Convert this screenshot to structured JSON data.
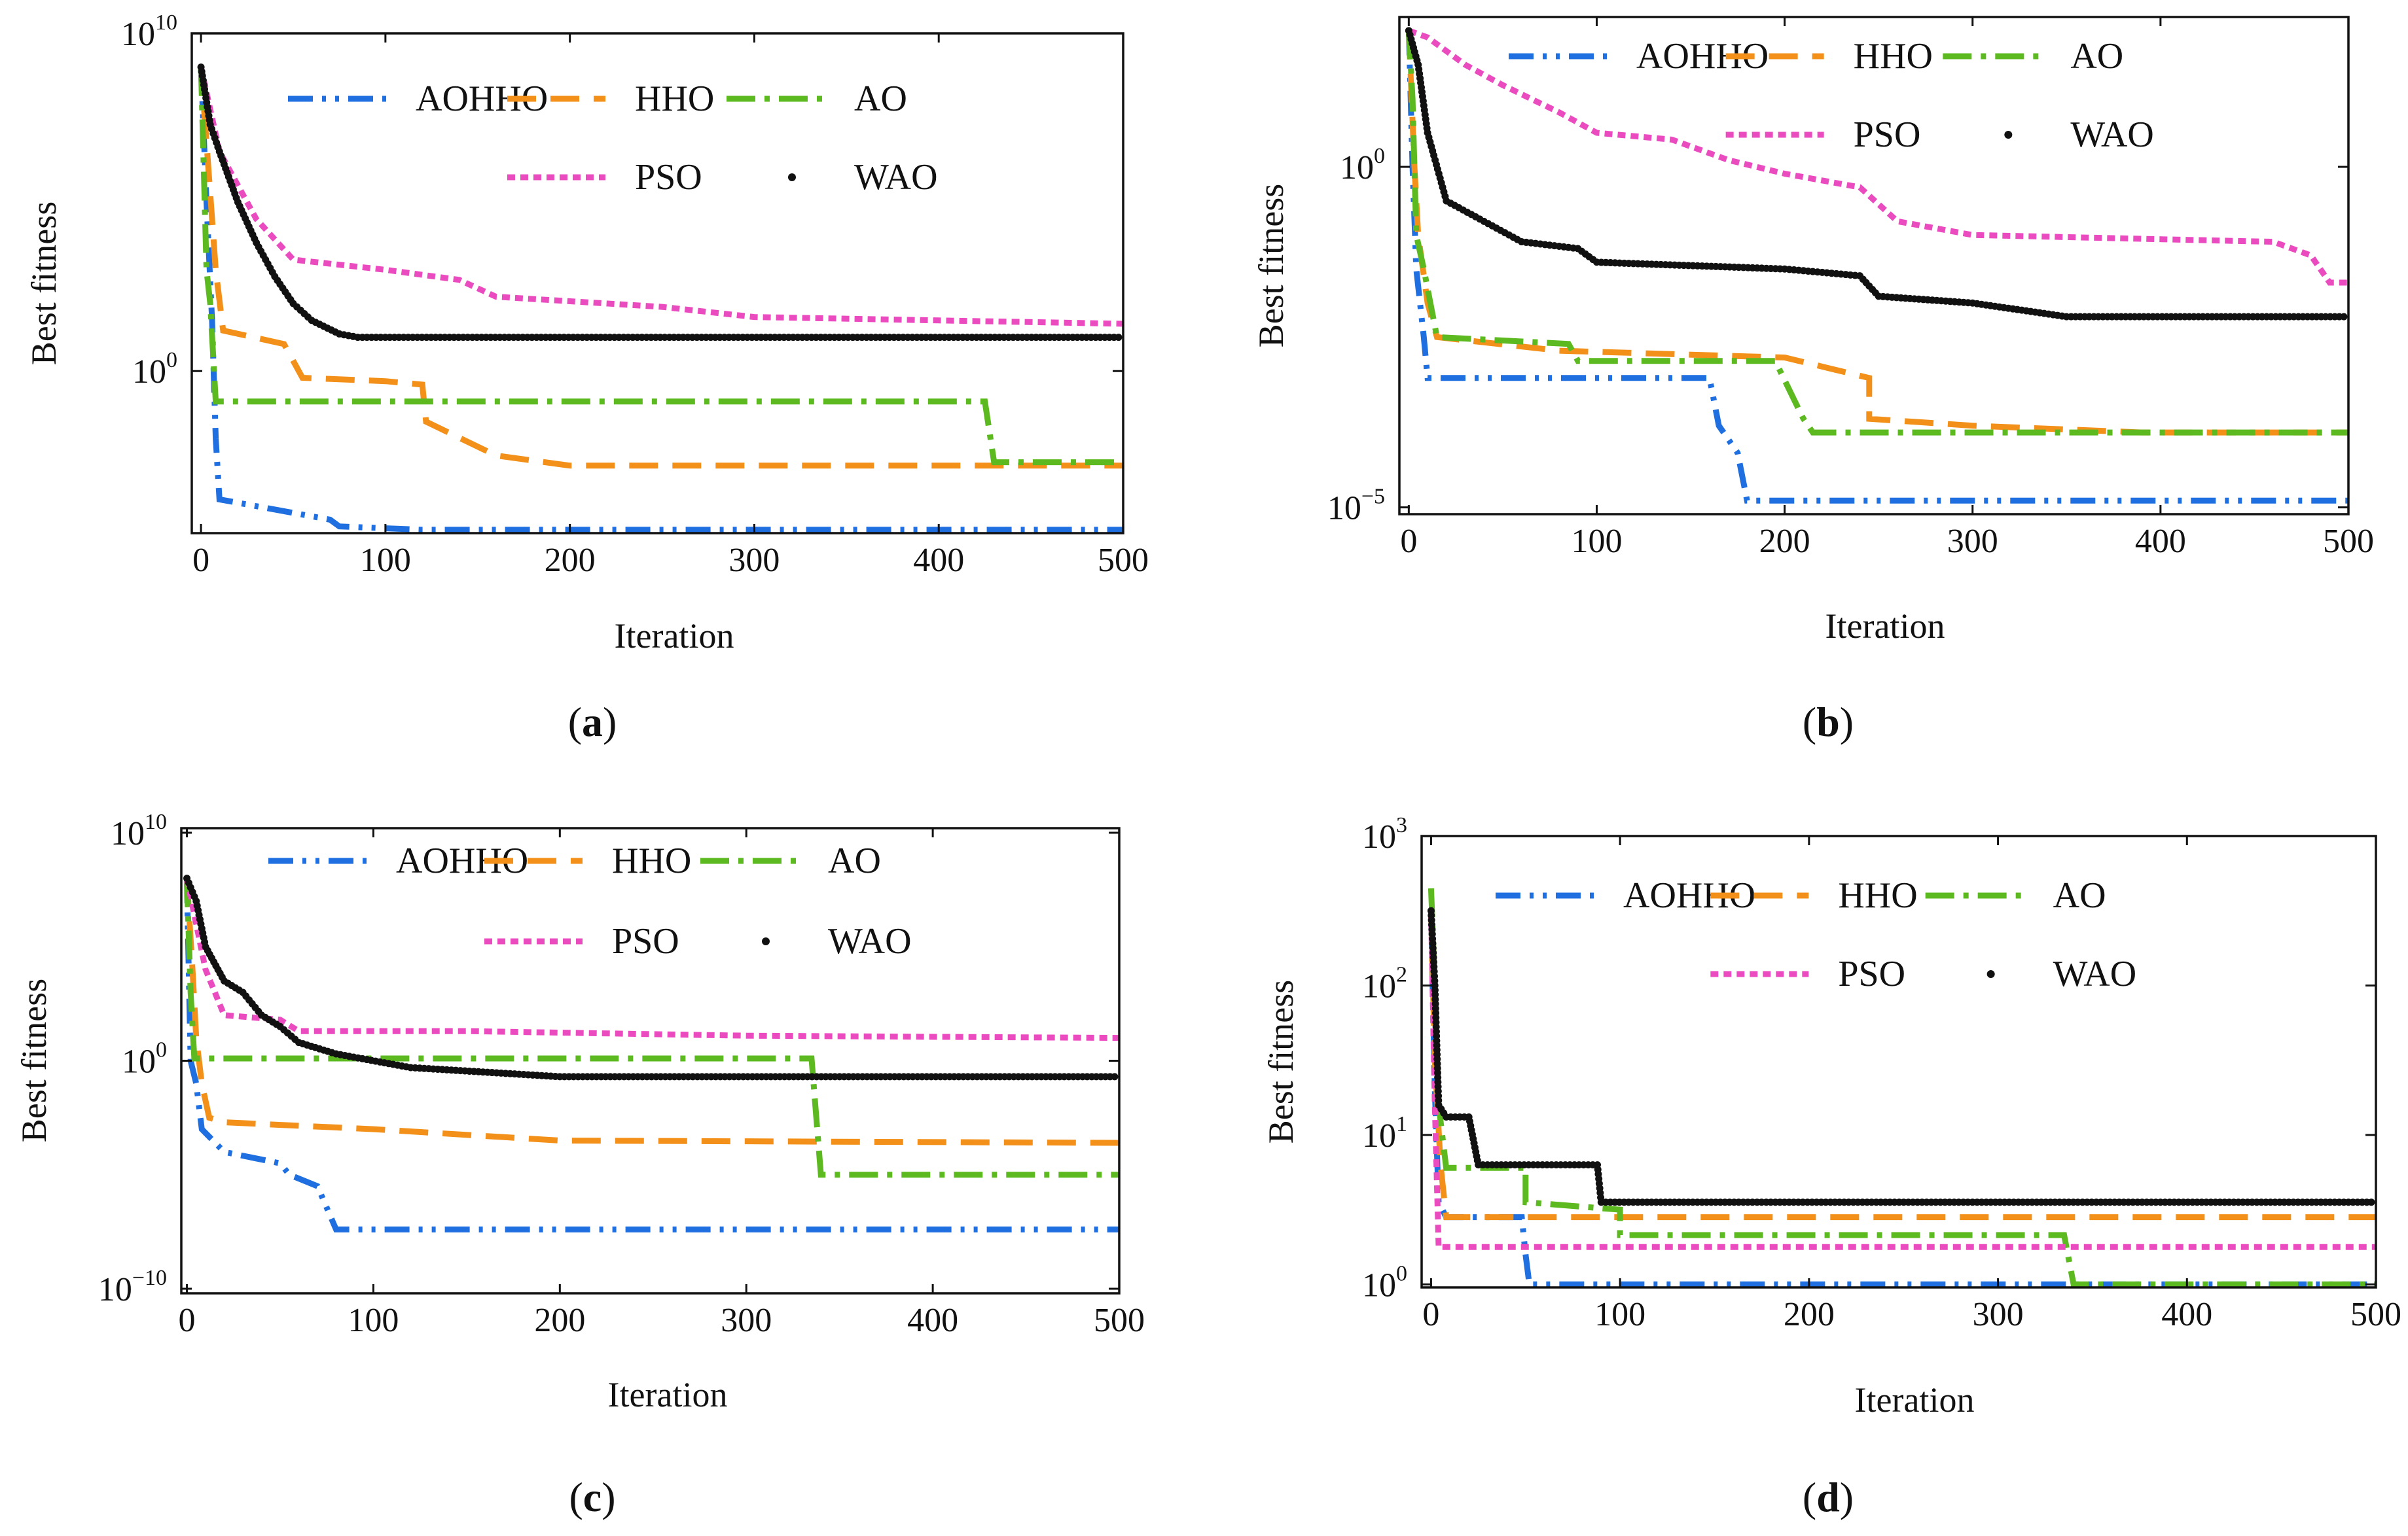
{
  "figure": {
    "panels": [
      {
        "caption_open": "(",
        "caption_letter": "a",
        "caption_close": ")"
      },
      {
        "caption_open": "(",
        "caption_letter": "b",
        "caption_close": ")"
      },
      {
        "caption_open": "(",
        "caption_letter": "c",
        "caption_close": ")"
      },
      {
        "caption_open": "(",
        "caption_letter": "d",
        "caption_close": ")"
      }
    ]
  },
  "chart_data": [
    {
      "type": "line",
      "title": "",
      "xlabel": "Iteration",
      "ylabel": "Best fitness",
      "yscale": "log",
      "xlim": [
        -5,
        500
      ],
      "ylim_log10": [
        -4.8,
        10.0
      ],
      "xticks": [
        0,
        100,
        200,
        300,
        400,
        500
      ],
      "xtick_labels": [
        "0",
        "100",
        "200",
        "300",
        "400",
        "500"
      ],
      "yticks_log10": [
        0,
        10
      ],
      "ytick_labels": [
        {
          "base": "10",
          "exp": "0"
        },
        {
          "base": "10",
          "exp": "10"
        }
      ],
      "legend": "top, 3 columns",
      "series": [
        {
          "name": "AOHHO",
          "color": "#1f6fe0",
          "style": "dash-dot-dot",
          "points": [
            [
              0,
              9
            ],
            [
              3,
              5
            ],
            [
              6,
              1.5
            ],
            [
              8,
              -2
            ],
            [
              10,
              -3.8
            ],
            [
              70,
              -4.4
            ],
            [
              75,
              -4.6
            ],
            [
              120,
              -4.7
            ],
            [
              500,
              -4.7
            ]
          ]
        },
        {
          "name": "HHO",
          "color": "#f39019",
          "style": "dashed",
          "points": [
            [
              0,
              9
            ],
            [
              4,
              6
            ],
            [
              8,
              3
            ],
            [
              12,
              1.2
            ],
            [
              45,
              0.8
            ],
            [
              55,
              -0.2
            ],
            [
              100,
              -0.3
            ],
            [
              120,
              -0.4
            ],
            [
              122,
              -1.5
            ],
            [
              160,
              -2.5
            ],
            [
              200,
              -2.8
            ],
            [
              500,
              -2.8
            ]
          ]
        },
        {
          "name": "AO",
          "color": "#5cb91f",
          "style": "dash-dot",
          "points": [
            [
              0,
              9
            ],
            [
              3,
              3
            ],
            [
              5,
              2
            ],
            [
              8,
              -0.9
            ],
            [
              425,
              -0.9
            ],
            [
              430,
              -2.7
            ],
            [
              500,
              -2.7
            ]
          ]
        },
        {
          "name": "PSO",
          "color": "#ea4cc0",
          "style": "dotted",
          "points": [
            [
              0,
              9
            ],
            [
              10,
              6.5
            ],
            [
              30,
              4.5
            ],
            [
              50,
              3.3
            ],
            [
              100,
              3.0
            ],
            [
              140,
              2.7
            ],
            [
              160,
              2.2
            ],
            [
              250,
              1.9
            ],
            [
              300,
              1.6
            ],
            [
              400,
              1.5
            ],
            [
              500,
              1.4
            ]
          ]
        },
        {
          "name": "WAO",
          "color": "#111111",
          "style": "dots",
          "points": [
            [
              0,
              9
            ],
            [
              5,
              7.3
            ],
            [
              10,
              6.5
            ],
            [
              20,
              5.0
            ],
            [
              30,
              3.8
            ],
            [
              40,
              2.8
            ],
            [
              50,
              2.0
            ],
            [
              60,
              1.5
            ],
            [
              75,
              1.1
            ],
            [
              85,
              1.0
            ],
            [
              500,
              1.0
            ]
          ]
        }
      ]
    },
    {
      "type": "line",
      "title": "",
      "xlabel": "Iteration",
      "ylabel": "Best fitness",
      "yscale": "log",
      "xlim": [
        -5,
        500
      ],
      "ylim_log10": [
        -5.1,
        2.2
      ],
      "xticks": [
        0,
        100,
        200,
        300,
        400,
        500
      ],
      "xtick_labels": [
        "0",
        "100",
        "200",
        "300",
        "400",
        "500"
      ],
      "yticks_log10": [
        -5,
        0
      ],
      "ytick_labels": [
        {
          "base": "10",
          "exp": "−5"
        },
        {
          "base": "10",
          "exp": "0"
        }
      ],
      "legend": "top, 3 columns",
      "series": [
        {
          "name": "AOHHO",
          "color": "#1f6fe0",
          "style": "dash-dot-dot",
          "points": [
            [
              0,
              2
            ],
            [
              2,
              0
            ],
            [
              4,
              -1.5
            ],
            [
              8,
              -2.5
            ],
            [
              10,
              -3.1
            ],
            [
              160,
              -3.1
            ],
            [
              165,
              -3.8
            ],
            [
              175,
              -4.2
            ],
            [
              180,
              -4.9
            ],
            [
              500,
              -4.9
            ]
          ]
        },
        {
          "name": "HHO",
          "color": "#f39019",
          "style": "dashed",
          "points": [
            [
              0,
              2
            ],
            [
              3,
              0
            ],
            [
              5,
              -1
            ],
            [
              10,
              -2.0
            ],
            [
              15,
              -2.5
            ],
            [
              80,
              -2.7
            ],
            [
              200,
              -2.8
            ],
            [
              245,
              -3.1
            ],
            [
              245,
              -3.7
            ],
            [
              300,
              -3.8
            ],
            [
              390,
              -3.9
            ],
            [
              500,
              -3.9
            ]
          ]
        },
        {
          "name": "AO",
          "color": "#5cb91f",
          "style": "dash-dot",
          "points": [
            [
              0,
              2
            ],
            [
              2,
              1
            ],
            [
              4,
              -1
            ],
            [
              8,
              -1.5
            ],
            [
              15,
              -2.5
            ],
            [
              85,
              -2.6
            ],
            [
              90,
              -2.85
            ],
            [
              195,
              -2.85
            ],
            [
              210,
              -3.7
            ],
            [
              215,
              -3.9
            ],
            [
              500,
              -3.9
            ]
          ]
        },
        {
          "name": "PSO",
          "color": "#ea4cc0",
          "style": "dotted",
          "points": [
            [
              0,
              2
            ],
            [
              10,
              1.9
            ],
            [
              30,
              1.5
            ],
            [
              50,
              1.2
            ],
            [
              80,
              0.8
            ],
            [
              100,
              0.5
            ],
            [
              140,
              0.4
            ],
            [
              170,
              0.1
            ],
            [
              200,
              -0.1
            ],
            [
              240,
              -0.3
            ],
            [
              260,
              -0.8
            ],
            [
              300,
              -1.0
            ],
            [
              460,
              -1.1
            ],
            [
              480,
              -1.3
            ],
            [
              490,
              -1.7
            ],
            [
              500,
              -1.7
            ]
          ]
        },
        {
          "name": "WAO",
          "color": "#111111",
          "style": "dots",
          "points": [
            [
              0,
              2
            ],
            [
              5,
              1.5
            ],
            [
              10,
              0.5
            ],
            [
              20,
              -0.5
            ],
            [
              40,
              -0.8
            ],
            [
              60,
              -1.1
            ],
            [
              90,
              -1.2
            ],
            [
              100,
              -1.4
            ],
            [
              200,
              -1.5
            ],
            [
              240,
              -1.6
            ],
            [
              250,
              -1.9
            ],
            [
              300,
              -2.0
            ],
            [
              350,
              -2.2
            ],
            [
              500,
              -2.2
            ]
          ]
        }
      ]
    },
    {
      "type": "line",
      "title": "",
      "xlabel": "Iteration",
      "ylabel": "Best fitness",
      "yscale": "log",
      "xlim": [
        -3,
        500
      ],
      "ylim_log10": [
        -10.2,
        10.2
      ],
      "xticks": [
        0,
        100,
        200,
        300,
        400,
        500
      ],
      "xtick_labels": [
        "0",
        "100",
        "200",
        "300",
        "400",
        "500"
      ],
      "yticks_log10": [
        -10,
        0,
        10
      ],
      "ytick_labels": [
        {
          "base": "10",
          "exp": "−10"
        },
        {
          "base": "10",
          "exp": "0"
        },
        {
          "base": "10",
          "exp": "10"
        }
      ],
      "legend": "top, 3 columns",
      "series": [
        {
          "name": "AOHHO",
          "color": "#1f6fe0",
          "style": "dash-dot-dot",
          "points": [
            [
              0,
              8
            ],
            [
              2,
              0
            ],
            [
              5,
              -1
            ],
            [
              8,
              -3
            ],
            [
              20,
              -4.0
            ],
            [
              50,
              -4.5
            ],
            [
              55,
              -5.0
            ],
            [
              70,
              -5.5
            ],
            [
              80,
              -7.4
            ],
            [
              500,
              -7.4
            ]
          ]
        },
        {
          "name": "HHO",
          "color": "#f39019",
          "style": "dashed",
          "points": [
            [
              0,
              8
            ],
            [
              3,
              4
            ],
            [
              5,
              1
            ],
            [
              8,
              -1
            ],
            [
              12,
              -2.5
            ],
            [
              20,
              -2.7
            ],
            [
              100,
              -3.0
            ],
            [
              200,
              -3.5
            ],
            [
              500,
              -3.6
            ]
          ]
        },
        {
          "name": "AO",
          "color": "#5cb91f",
          "style": "dash-dot",
          "points": [
            [
              0,
              8
            ],
            [
              2,
              3
            ],
            [
              4,
              0.1
            ],
            [
              335,
              0.1
            ],
            [
              340,
              -5.0
            ],
            [
              500,
              -5.0
            ]
          ]
        },
        {
          "name": "PSO",
          "color": "#ea4cc0",
          "style": "dotted",
          "points": [
            [
              0,
              8
            ],
            [
              5,
              6
            ],
            [
              10,
              4
            ],
            [
              20,
              2
            ],
            [
              50,
              1.8
            ],
            [
              60,
              1.3
            ],
            [
              150,
              1.3
            ],
            [
              300,
              1.1
            ],
            [
              500,
              1.0
            ]
          ]
        },
        {
          "name": "WAO",
          "color": "#111111",
          "style": "dots",
          "points": [
            [
              0,
              8
            ],
            [
              5,
              7
            ],
            [
              10,
              5
            ],
            [
              20,
              3.5
            ],
            [
              30,
              3
            ],
            [
              40,
              2
            ],
            [
              50,
              1.5
            ],
            [
              60,
              0.8
            ],
            [
              80,
              0.3
            ],
            [
              120,
              -0.3
            ],
            [
              200,
              -0.7
            ],
            [
              500,
              -0.7
            ]
          ]
        }
      ]
    },
    {
      "type": "line",
      "title": "",
      "xlabel": "Iteration",
      "ylabel": "Best fitness",
      "yscale": "log",
      "xlim": [
        -5,
        500
      ],
      "ylim_log10": [
        -0.02,
        3.0
      ],
      "xticks": [
        0,
        100,
        200,
        300,
        400,
        500
      ],
      "xtick_labels": [
        "0",
        "100",
        "200",
        "300",
        "400",
        "500"
      ],
      "yticks_log10": [
        0,
        1,
        2,
        3
      ],
      "ytick_labels": [
        {
          "base": "10",
          "exp": "0"
        },
        {
          "base": "10",
          "exp": "1"
        },
        {
          "base": "10",
          "exp": "2"
        },
        {
          "base": "10",
          "exp": "3"
        }
      ],
      "legend": "top, 3 columns",
      "series": [
        {
          "name": "AOHHO",
          "color": "#1f6fe0",
          "style": "dash-dot-dot",
          "points": [
            [
              0,
              2.5
            ],
            [
              2,
              1.3
            ],
            [
              4,
              0.55
            ],
            [
              8,
              0.45
            ],
            [
              48,
              0.45
            ],
            [
              50,
              0.2
            ],
            [
              52,
              0
            ],
            [
              500,
              0
            ]
          ]
        },
        {
          "name": "HHO",
          "color": "#f39019",
          "style": "dashed",
          "points": [
            [
              0,
              2.5
            ],
            [
              2,
              1.5
            ],
            [
              5,
              0.8
            ],
            [
              8,
              0.45
            ],
            [
              500,
              0.45
            ]
          ]
        },
        {
          "name": "AO",
          "color": "#5cb91f",
          "style": "dash-dot",
          "points": [
            [
              0,
              2.65
            ],
            [
              2,
              2
            ],
            [
              4,
              1.2
            ],
            [
              8,
              0.78
            ],
            [
              50,
              0.78
            ],
            [
              50,
              0.55
            ],
            [
              100,
              0.5
            ],
            [
              100,
              0.33
            ],
            [
              335,
              0.33
            ],
            [
              340,
              0
            ],
            [
              500,
              0
            ]
          ]
        },
        {
          "name": "PSO",
          "color": "#ea4cc0",
          "style": "dotted",
          "points": [
            [
              0,
              2.5
            ],
            [
              2,
              1.2
            ],
            [
              4,
              0.25
            ],
            [
              500,
              0.25
            ]
          ]
        },
        {
          "name": "WAO",
          "color": "#111111",
          "style": "dots",
          "points": [
            [
              0,
              2.5
            ],
            [
              2,
              2
            ],
            [
              4,
              1.2
            ],
            [
              8,
              1.12
            ],
            [
              20,
              1.12
            ],
            [
              25,
              0.8
            ],
            [
              88,
              0.8
            ],
            [
              90,
              0.55
            ],
            [
              500,
              0.55
            ]
          ]
        }
      ]
    }
  ]
}
